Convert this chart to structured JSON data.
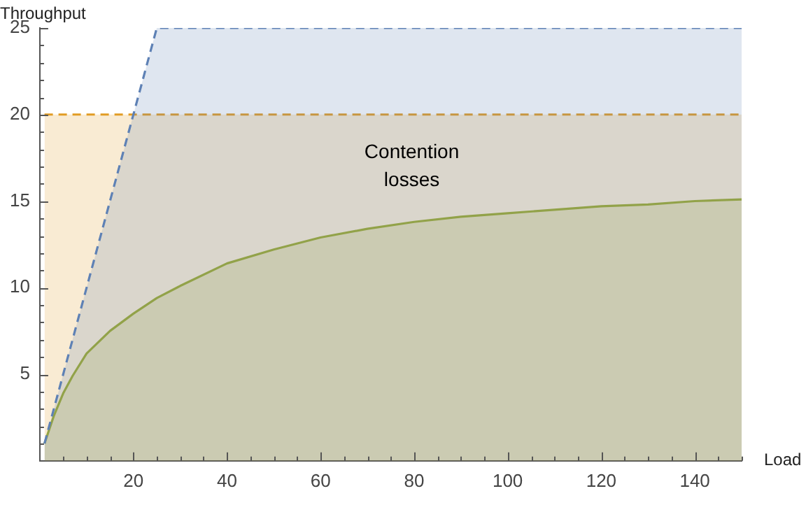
{
  "chart_data": {
    "type": "area",
    "xlabel": "Load",
    "ylabel": "Throughput",
    "xlim": [
      0,
      150
    ],
    "ylim": [
      0,
      25
    ],
    "xticks": [
      {
        "value": 5,
        "label": null
      },
      {
        "value": 10,
        "label": null
      },
      {
        "value": 15,
        "label": null
      },
      20,
      {
        "value": 25,
        "label": null
      },
      {
        "value": 30,
        "label": null
      },
      {
        "value": 35,
        "label": null
      },
      40,
      {
        "value": 45,
        "label": null
      },
      {
        "value": 50,
        "label": null
      },
      {
        "value": 55,
        "label": null
      },
      60,
      {
        "value": 65,
        "label": null
      },
      {
        "value": 70,
        "label": null
      },
      {
        "value": 75,
        "label": null
      },
      80,
      {
        "value": 85,
        "label": null
      },
      {
        "value": 90,
        "label": null
      },
      {
        "value": 95,
        "label": null
      },
      100,
      {
        "value": 105,
        "label": null
      },
      {
        "value": 110,
        "label": null
      },
      {
        "value": 115,
        "label": null
      },
      120,
      {
        "value": 125,
        "label": null
      },
      {
        "value": 130,
        "label": null
      },
      {
        "value": 135,
        "label": null
      },
      140,
      {
        "value": 145,
        "label": null
      },
      {
        "value": 150,
        "label": null
      }
    ],
    "yticks": [
      {
        "value": 1,
        "label": null
      },
      {
        "value": 2,
        "label": null
      },
      {
        "value": 3,
        "label": null
      },
      {
        "value": 4,
        "label": null
      },
      5,
      {
        "value": 6,
        "label": null
      },
      {
        "value": 7,
        "label": null
      },
      {
        "value": 8,
        "label": null
      },
      {
        "value": 9,
        "label": null
      },
      10,
      {
        "value": 11,
        "label": null
      },
      {
        "value": 12,
        "label": null
      },
      {
        "value": 13,
        "label": null
      },
      {
        "value": 14,
        "label": null
      },
      15,
      {
        "value": 16,
        "label": null
      },
      {
        "value": 17,
        "label": null
      },
      {
        "value": 18,
        "label": null
      },
      {
        "value": 19,
        "label": null
      },
      20,
      {
        "value": 21,
        "label": null
      },
      {
        "value": 22,
        "label": null
      },
      {
        "value": 23,
        "label": null
      },
      {
        "value": 24,
        "label": null
      },
      25
    ],
    "series": [
      {
        "color": "#5e81b5",
        "line_style": "dashed",
        "x": [
          1,
          25,
          150
        ],
        "values": [
          1,
          25,
          25
        ]
      },
      {
        "color": "#e19c24",
        "line_style": "dashed",
        "x": [
          1,
          150
        ],
        "values": [
          20,
          20
        ]
      },
      {
        "color": "#8fb032",
        "line_style": "solid",
        "x": [
          1,
          2,
          3,
          5,
          7,
          10,
          15,
          20,
          25,
          30,
          40,
          50,
          60,
          70,
          80,
          90,
          100,
          110,
          120,
          130,
          140,
          150
        ],
        "values": [
          1,
          1.8,
          2.6,
          3.9,
          4.9,
          6.2,
          7.5,
          8.5,
          9.4,
          10.1,
          11.4,
          12.2,
          12.9,
          13.4,
          13.8,
          14.1,
          14.3,
          14.5,
          14.7,
          14.8,
          15.0,
          15.1
        ]
      }
    ],
    "annotations": [
      "Contention losses"
    ]
  }
}
